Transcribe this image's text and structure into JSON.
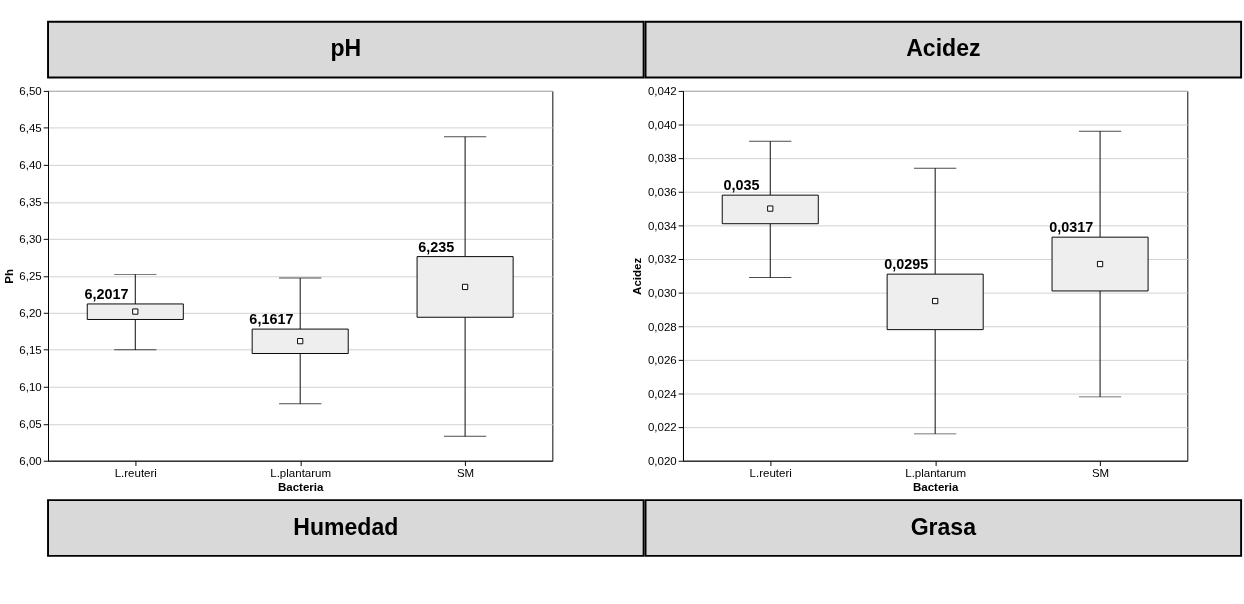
{
  "chart_data": [
    {
      "type": "box",
      "title": "pH",
      "xlabel": "Bacteria",
      "ylabel": "Ph",
      "categories": [
        "L.reuteri",
        "L.plantarum",
        "SM"
      ],
      "boxes": [
        {
          "low": 6.15,
          "q1": 6.191,
          "median": 6.2017,
          "q3": 6.212,
          "high": 6.252
        },
        {
          "low": 6.077,
          "q1": 6.145,
          "median": 6.1617,
          "q3": 6.178,
          "high": 6.247
        },
        {
          "low": 6.033,
          "q1": 6.194,
          "median": 6.235,
          "q3": 6.276,
          "high": 6.438
        }
      ],
      "value_labels": [
        "6,2017",
        "6,1617",
        "6,235"
      ],
      "ylim": [
        6.0,
        6.5
      ],
      "yticks": [
        {
          "value": 6.0,
          "label": "6,00"
        },
        {
          "value": 6.05,
          "label": "6,05"
        },
        {
          "value": 6.1,
          "label": "6,10"
        },
        {
          "value": 6.15,
          "label": "6,15"
        },
        {
          "value": 6.2,
          "label": "6,20"
        },
        {
          "value": 6.25,
          "label": "6,25"
        },
        {
          "value": 6.3,
          "label": "6,30"
        },
        {
          "value": 6.35,
          "label": "6,35"
        },
        {
          "value": 6.4,
          "label": "6,40"
        },
        {
          "value": 6.45,
          "label": "6,45"
        },
        {
          "value": 6.5,
          "label": "6,50"
        }
      ],
      "grid": "y",
      "marker": "square"
    },
    {
      "type": "box",
      "title": "Acidez",
      "xlabel": "Bacteria",
      "ylabel": "Acidez",
      "categories": [
        "L.reuteri",
        "L.plantarum",
        "SM"
      ],
      "boxes": [
        {
          "low": 0.0309,
          "q1": 0.0341,
          "median": 0.035,
          "q3": 0.0358,
          "high": 0.039
        },
        {
          "low": 0.0216,
          "q1": 0.0278,
          "median": 0.0295,
          "q3": 0.0311,
          "high": 0.0374
        },
        {
          "low": 0.0238,
          "q1": 0.0301,
          "median": 0.0317,
          "q3": 0.0333,
          "high": 0.0396
        }
      ],
      "value_labels": [
        "0,035",
        "0,0295",
        "0,0317"
      ],
      "ylim": [
        0.02,
        0.042
      ],
      "yticks": [
        {
          "value": 0.02,
          "label": "0,020"
        },
        {
          "value": 0.022,
          "label": "0,022"
        },
        {
          "value": 0.024,
          "label": "0,024"
        },
        {
          "value": 0.026,
          "label": "0,026"
        },
        {
          "value": 0.028,
          "label": "0,028"
        },
        {
          "value": 0.03,
          "label": "0,030"
        },
        {
          "value": 0.032,
          "label": "0,032"
        },
        {
          "value": 0.034,
          "label": "0,034"
        },
        {
          "value": 0.036,
          "label": "0,036"
        },
        {
          "value": 0.038,
          "label": "0,038"
        },
        {
          "value": 0.04,
          "label": "0,040"
        },
        {
          "value": 0.042,
          "label": "0,042"
        }
      ],
      "grid": "y",
      "marker": "square"
    },
    {
      "type": "other",
      "title": "Humedad"
    },
    {
      "type": "other",
      "title": "Grasa"
    }
  ]
}
